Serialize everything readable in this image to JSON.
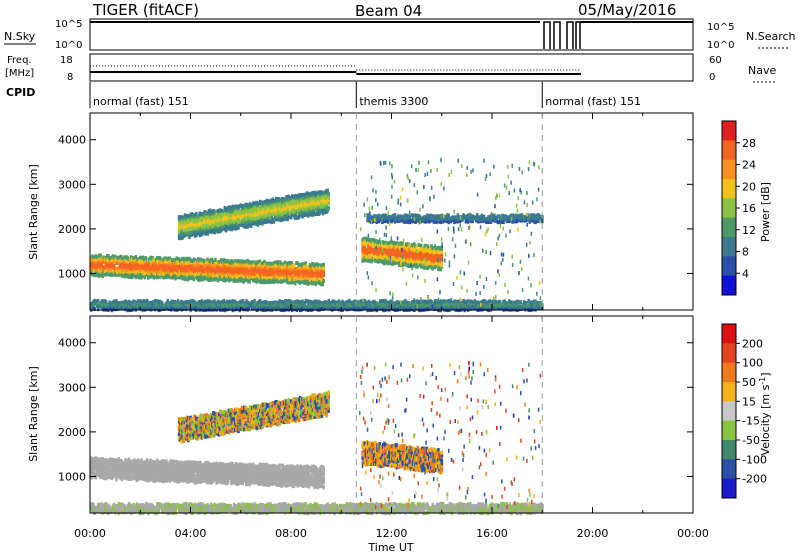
{
  "header": {
    "radar": "TIGER (fitACF)",
    "beam": "Beam 04",
    "date": "05/May/2016"
  },
  "status_panels": {
    "nsky_label": "N.Sky",
    "nsearch_label": "N.Search",
    "nsky_ticks": [
      "10^5",
      "10^0"
    ],
    "nsearch_ticks": [
      "10^5",
      "10^0"
    ],
    "freq_label": "Freq.",
    "freq_unit": "[MHz]",
    "freq_ticks": [
      "18",
      "8"
    ],
    "nave_label": "Nave",
    "nave_ticks": [
      "60",
      "0"
    ],
    "cpid_label": "CPID",
    "cpid_segments": [
      {
        "label": "normal (fast) 151",
        "start_hour": 0.0,
        "end_hour": 10.6
      },
      {
        "label": "themis 3300",
        "start_hour": 10.6,
        "end_hour": 18.0
      },
      {
        "label": "normal (fast) 151",
        "start_hour": 18.0,
        "end_hour": 24.0
      }
    ]
  },
  "colors": {
    "power_scale": [
      "#1010d8",
      "#2a4fa8",
      "#3b7a8e",
      "#4c9a6a",
      "#8ac246",
      "#f2c21b",
      "#f7901f",
      "#f26522",
      "#e01f1f"
    ],
    "velocity_scale": [
      "#1a1acc",
      "#2b4fa5",
      "#3f8a6a",
      "#88c440",
      "#c8c8c8",
      "#f2b21b",
      "#f07b1f",
      "#e4431f",
      "#dd1111"
    ],
    "ground_scatter": "#a8a8a8"
  },
  "chart_data": [
    {
      "type": "heatmap",
      "title": "Power",
      "xlabel": "Time UT",
      "ylabel": "Slant Range [km]",
      "colorbar_label": "Power [dB]",
      "colorbar_ticks": [
        "28",
        "24",
        "20",
        "16",
        "12",
        "8",
        "4"
      ],
      "x_range_hours": [
        0,
        24
      ],
      "xticks": [
        "00:00",
        "04:00",
        "08:00",
        "12:00",
        "16:00",
        "20:00",
        "00:00"
      ],
      "ylim": [
        180,
        4600
      ],
      "yticks": [
        1000,
        2000,
        3000,
        4000
      ],
      "cpid_change_hours": [
        10.6,
        18.0
      ],
      "features": [
        {
          "name": "main-band",
          "t_start": 0.0,
          "t_end": 9.3,
          "range_start_km": 1250,
          "range_end_km": 1050,
          "width_km": 450,
          "power_db": [
            12,
            18,
            22,
            26
          ]
        },
        {
          "name": "upper-band",
          "t_start": 3.5,
          "t_end": 9.5,
          "range_start_km": 2100,
          "range_end_km": 2700,
          "width_km": 500,
          "power_db": [
            8,
            12,
            16,
            20
          ]
        },
        {
          "name": "themis-blob",
          "t_start": 10.8,
          "t_end": 14.0,
          "range_start_km": 1600,
          "range_end_km": 1400,
          "width_km": 500,
          "power_db": [
            12,
            20,
            26
          ]
        },
        {
          "name": "near-range",
          "t_start": 0.0,
          "t_end": 18.0,
          "range_start_km": 350,
          "range_end_km": 350,
          "width_km": 200,
          "power_db": [
            4,
            8,
            12
          ]
        },
        {
          "name": "far-band",
          "t_start": 11.0,
          "t_end": 18.0,
          "range_start_km": 2300,
          "range_end_km": 2300,
          "width_km": 150,
          "power_db": [
            4,
            8
          ]
        }
      ]
    },
    {
      "type": "heatmap",
      "title": "Velocity",
      "xlabel": "Time UT",
      "ylabel": "Slant Range [km]",
      "colorbar_label": "Velocity [m s-1]",
      "colorbar_ticks": [
        "200",
        "100",
        "50",
        "15",
        "-15",
        "-50",
        "-100",
        "-200"
      ],
      "x_range_hours": [
        0,
        24
      ],
      "xticks": [
        "00:00",
        "04:00",
        "08:00",
        "12:00",
        "16:00",
        "20:00",
        "00:00"
      ],
      "ylim": [
        180,
        4600
      ],
      "yticks": [
        1000,
        2000,
        3000,
        4000
      ],
      "cpid_change_hours": [
        10.6,
        18.0
      ],
      "features": [
        {
          "name": "ground-scatter-band",
          "t_start": 0.0,
          "t_end": 9.3,
          "range_start_km": 1250,
          "range_end_km": 1050,
          "width_km": 450,
          "velocity_ms": [
            -10,
            0,
            10
          ]
        },
        {
          "name": "upper-band",
          "t_start": 3.5,
          "t_end": 9.5,
          "range_start_km": 2100,
          "range_end_km": 2700,
          "width_km": 500,
          "velocity_ms": [
            -50,
            -20,
            50,
            200
          ]
        },
        {
          "name": "themis-blob",
          "t_start": 10.8,
          "t_end": 14.0,
          "range_start_km": 1600,
          "range_end_km": 1400,
          "width_km": 500,
          "velocity_ms": [
            -50,
            -30,
            200
          ]
        },
        {
          "name": "near-range",
          "t_start": 0.0,
          "t_end": 18.0,
          "range_start_km": 350,
          "range_end_km": 350,
          "width_km": 200,
          "velocity_ms": [
            -15,
            15,
            50
          ]
        }
      ]
    }
  ]
}
